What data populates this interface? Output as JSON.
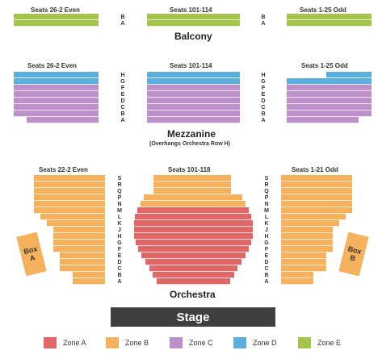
{
  "colors": {
    "zone_a": "#e26867",
    "zone_b": "#f5b15c",
    "zone_c": "#be90cb",
    "zone_d": "#5aafdc",
    "zone_e": "#a3c54a",
    "stage": "#3f3f3f"
  },
  "balcony": {
    "title": "Balcony",
    "sections": {
      "left": "Seats 26-2 Even",
      "center": "Seats 101-114",
      "right": "Seats 1-25 Odd"
    },
    "rows": [
      "B",
      "A"
    ]
  },
  "mezzanine": {
    "title": "Mezzanine",
    "subtitle": "(Overhangs Orchestra Row H)",
    "sections": {
      "left": "Seats 26-2 Even",
      "center": "Seats 101-114",
      "right": "Seats 1-25 Odd"
    },
    "rows": [
      "H",
      "G",
      "F",
      "E",
      "D",
      "C",
      "B",
      "A"
    ]
  },
  "orchestra": {
    "title": "Orchestra",
    "sections": {
      "left": "Seats 22-2 Even",
      "center": "Seats 101-118",
      "right": "Seats 1-21 Odd"
    },
    "rows": [
      "S",
      "R",
      "Q",
      "P",
      "N",
      "M",
      "L",
      "K",
      "J",
      "H",
      "G",
      "F",
      "E",
      "D",
      "C",
      "B",
      "A"
    ],
    "box_a": {
      "line1": "Box",
      "line2": "A"
    },
    "box_b": {
      "line1": "Box",
      "line2": "B"
    }
  },
  "stage": {
    "label": "Stage"
  },
  "legend": [
    {
      "label": "Zone A",
      "color": "#e26867"
    },
    {
      "label": "Zone B",
      "color": "#f5b15c"
    },
    {
      "label": "Zone C",
      "color": "#be90cb"
    },
    {
      "label": "Zone D",
      "color": "#5aafdc"
    },
    {
      "label": "Zone E",
      "color": "#a3c54a"
    }
  ]
}
